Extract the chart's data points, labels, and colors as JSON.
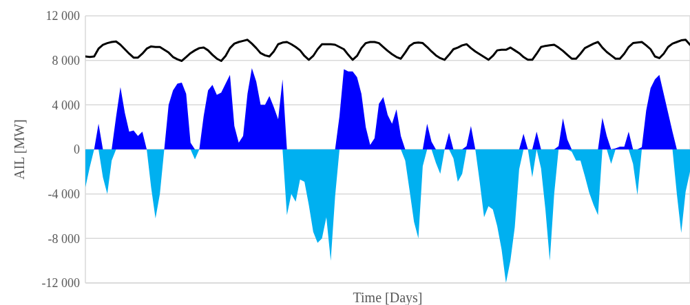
{
  "chart_data": {
    "type": "area",
    "xlabel": "Time [Days]",
    "ylabel": "AIL [MW]",
    "categories": [
      null,
      null,
      null,
      null,
      null,
      null,
      null,
      null,
      null,
      null,
      null,
      null,
      null,
      null,
      null,
      null,
      null,
      null,
      null,
      null,
      null,
      null,
      null,
      null,
      null,
      null,
      null,
      null,
      null,
      null,
      null,
      null,
      null,
      null,
      null,
      null,
      null,
      null,
      null,
      null,
      null,
      null,
      null,
      null,
      null,
      null,
      null,
      null,
      null,
      null,
      null,
      null,
      null,
      null,
      null,
      null,
      null,
      null,
      null,
      null,
      null,
      null,
      null,
      null,
      null,
      null,
      null,
      null,
      null,
      null,
      null,
      null,
      null,
      null,
      null,
      null,
      null,
      null,
      null,
      null,
      null,
      null,
      null,
      null,
      null,
      null,
      null,
      null,
      null,
      null,
      null,
      null,
      null,
      null,
      null,
      null,
      null,
      null,
      null,
      null,
      null,
      null,
      null,
      null,
      null,
      null,
      null,
      null,
      null,
      null,
      null,
      null,
      null,
      null,
      null,
      null,
      null,
      null,
      null,
      null,
      null,
      null,
      null,
      null,
      null,
      null,
      null,
      null,
      null,
      null,
      null,
      null,
      null,
      null,
      null,
      null,
      null,
      null,
      null
    ],
    "ylim": [
      -12000,
      12000
    ],
    "yticks": [
      {
        "value": -12000,
        "label": "-12 000"
      },
      {
        "value": -8000,
        "label": "-8 000"
      },
      {
        "value": -4000,
        "label": "-4 000"
      },
      {
        "value": 0,
        "label": "0"
      },
      {
        "value": 4000,
        "label": "4 000"
      },
      {
        "value": 8000,
        "label": "8 000"
      },
      {
        "value": 12000,
        "label": "12 000"
      }
    ],
    "grid": true,
    "tick_labels": "y",
    "series": [
      {
        "color": "#0000ff",
        "values": [
          0,
          0,
          0,
          2300,
          0,
          0,
          0,
          2900,
          5600,
          3300,
          1600,
          1700,
          1200,
          1600,
          0,
          0,
          0,
          0,
          0,
          4000,
          5300,
          5900,
          6000,
          5000,
          600,
          0,
          0,
          3000,
          5300,
          5800,
          4900,
          5100,
          5900,
          6700,
          2100,
          600,
          1200,
          5000,
          7300,
          6100,
          4000,
          4000,
          4800,
          3800,
          2700,
          6300,
          0,
          0,
          0,
          0,
          0,
          0,
          0,
          0,
          0,
          0,
          0,
          0,
          3000,
          7200,
          7000,
          7000,
          6500,
          5000,
          2000,
          400,
          1000,
          4100,
          4700,
          3100,
          2300,
          3600,
          1200,
          0,
          0,
          0,
          0,
          0,
          2300,
          700,
          0,
          0,
          0,
          1500,
          0,
          0,
          0,
          300,
          2100,
          0,
          0,
          0,
          0,
          0,
          0,
          0,
          0,
          0,
          0,
          0,
          1400,
          0,
          0,
          1600,
          0,
          0,
          0,
          0,
          300,
          2800,
          900,
          0,
          0,
          0,
          0,
          0,
          0,
          0,
          2850,
          1200,
          0,
          100,
          250,
          250,
          1600,
          0,
          0,
          200,
          3500,
          5500,
          6300,
          6700,
          5000,
          3300,
          1600,
          0,
          0,
          0,
          0
        ]
      },
      {
        "color": "#00b0f0",
        "values": [
          -3400,
          -1600,
          0,
          0,
          -2500,
          -4000,
          -1000,
          0,
          0,
          0,
          0,
          0,
          0,
          0,
          0,
          -3400,
          -6200,
          -4000,
          0,
          0,
          0,
          0,
          0,
          0,
          0,
          -900,
          0,
          0,
          0,
          0,
          0,
          0,
          0,
          0,
          0,
          0,
          0,
          0,
          0,
          0,
          0,
          0,
          0,
          0,
          0,
          0,
          -5900,
          -4000,
          -4700,
          -2700,
          -2900,
          -5000,
          -7400,
          -8400,
          -8000,
          -6100,
          -10000,
          -4200,
          0,
          0,
          0,
          0,
          0,
          0,
          0,
          0,
          0,
          0,
          0,
          0,
          0,
          0,
          0,
          -1000,
          -3700,
          -6500,
          -8000,
          -1500,
          0,
          0,
          -1200,
          -2200,
          0,
          0,
          -800,
          -2900,
          -2200,
          0,
          0,
          0,
          -2900,
          -6100,
          -5100,
          -5400,
          -6900,
          -9000,
          -12000,
          -10000,
          -7000,
          -1800,
          0,
          0,
          -2500,
          0,
          -1700,
          -5400,
          -10000,
          -4000,
          0,
          0,
          0,
          -200,
          -1000,
          -1000,
          -2400,
          -3900,
          -5000,
          -5900,
          0,
          0,
          -1300,
          0,
          0,
          0,
          0,
          -1300,
          -4100,
          0,
          0,
          0,
          0,
          0,
          0,
          0,
          0,
          -4000,
          -7500,
          -3800,
          -2000
        ]
      },
      {
        "type": "line",
        "color": "#000000",
        "values": [
          8350,
          8300,
          8350,
          9050,
          9400,
          9550,
          9650,
          9700,
          9400,
          9000,
          8600,
          8250,
          8250,
          8600,
          9050,
          9250,
          9200,
          9200,
          8950,
          8700,
          8300,
          8100,
          7950,
          8300,
          8650,
          8900,
          9100,
          9150,
          8900,
          8500,
          8150,
          7950,
          8400,
          9100,
          9500,
          9650,
          9750,
          9850,
          9500,
          9100,
          8650,
          8450,
          8350,
          8800,
          9450,
          9600,
          9650,
          9450,
          9200,
          8900,
          8400,
          8050,
          8400,
          9000,
          9450,
          9450,
          9450,
          9400,
          9200,
          9000,
          8500,
          8050,
          8400,
          9100,
          9550,
          9650,
          9650,
          9550,
          9200,
          8850,
          8550,
          8300,
          8150,
          8700,
          9300,
          9550,
          9600,
          9550,
          9200,
          8800,
          8450,
          8200,
          8050,
          8500,
          9000,
          9150,
          9350,
          9450,
          9100,
          8800,
          8550,
          8300,
          8050,
          8400,
          8900,
          8950,
          8950,
          9150,
          8900,
          8650,
          8300,
          8050,
          8050,
          8600,
          9200,
          9300,
          9350,
          9400,
          9150,
          8850,
          8500,
          8150,
          8150,
          8600,
          9100,
          9300,
          9500,
          9650,
          9150,
          8750,
          8450,
          8150,
          8150,
          8600,
          9200,
          9550,
          9600,
          9650,
          9350,
          9000,
          8350,
          8200,
          8600,
          9200,
          9500,
          9650,
          9800,
          9850,
          9400
        ]
      }
    ]
  }
}
